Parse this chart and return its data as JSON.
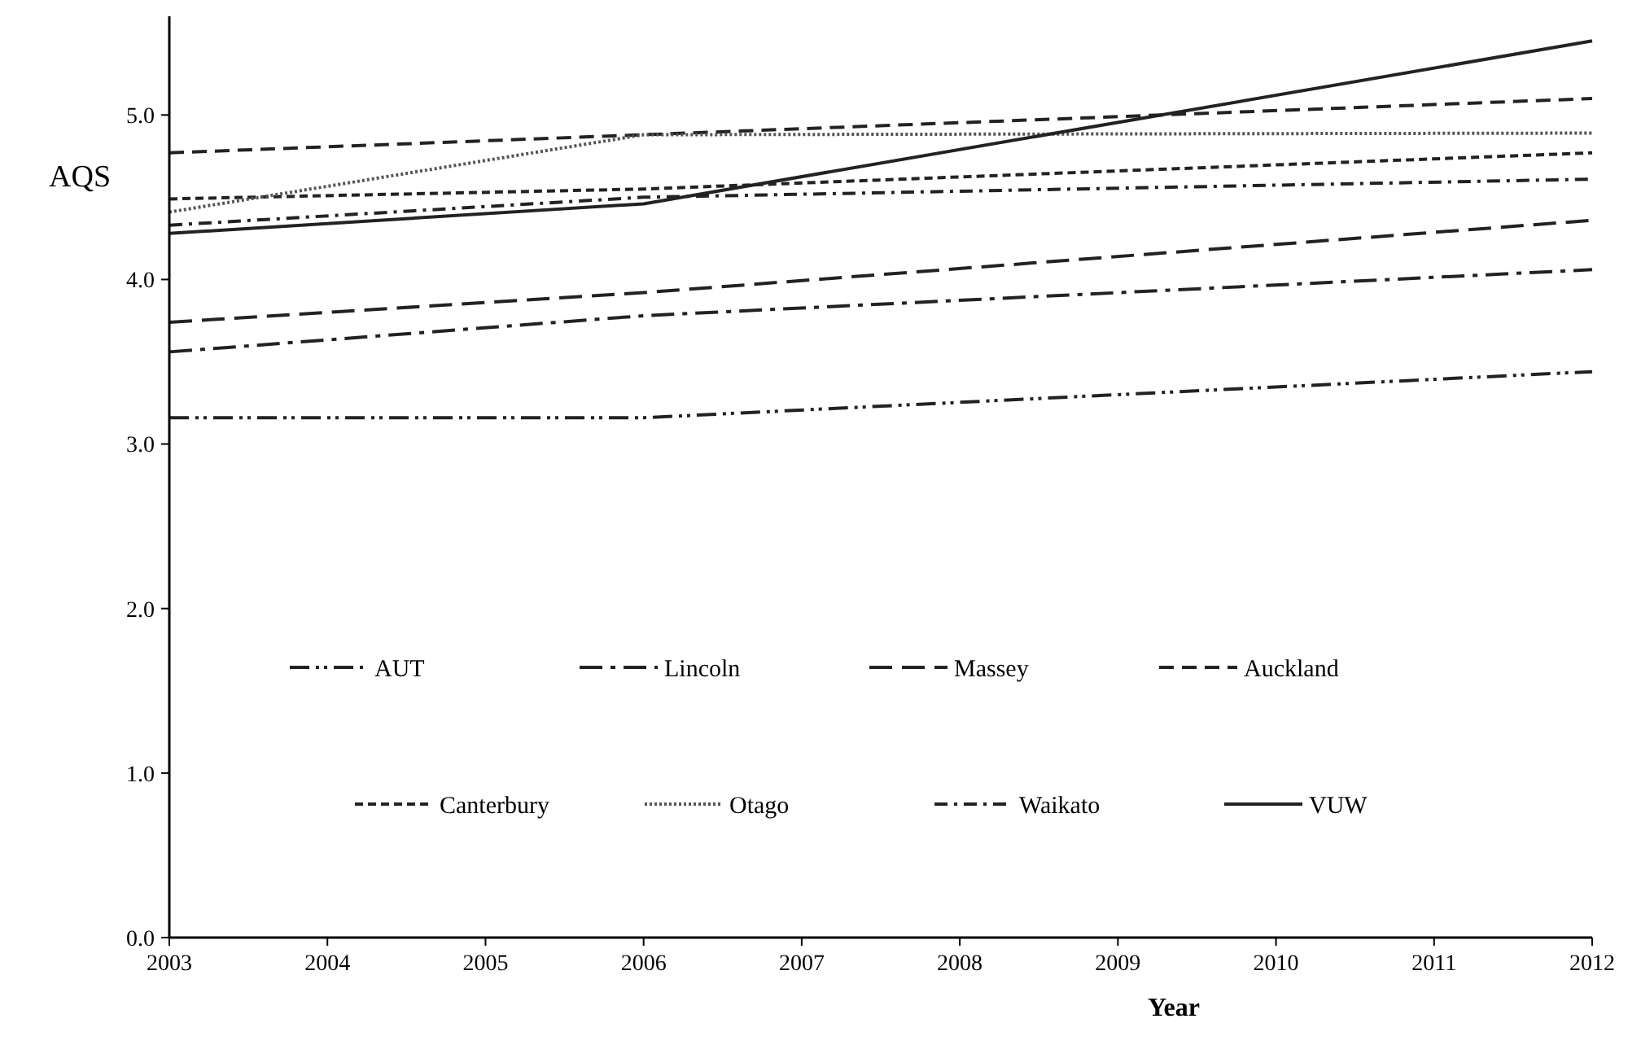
{
  "chart_data": {
    "type": "line",
    "xlabel": "Year",
    "ylabel": "AQS",
    "x": [
      2003,
      2006,
      2012
    ],
    "series": [
      {
        "name": "AUT",
        "color": "#222222",
        "line_style": "dashdotdot",
        "values": [
          3.16,
          3.16,
          3.44
        ]
      },
      {
        "name": "Lincoln",
        "color": "#222222",
        "line_style": "longdashdot",
        "values": [
          3.56,
          3.78,
          4.06
        ]
      },
      {
        "name": "Massey",
        "color": "#222222",
        "line_style": "longdash",
        "values": [
          3.74,
          3.92,
          4.36
        ]
      },
      {
        "name": "Auckland",
        "color": "#222222",
        "line_style": "dashed",
        "values": [
          4.77,
          4.88,
          5.1
        ]
      },
      {
        "name": "Canterbury",
        "color": "#222222",
        "line_style": "shortdash",
        "values": [
          4.49,
          4.55,
          4.77
        ]
      },
      {
        "name": "Otago",
        "color": "#555555",
        "line_style": "dotted",
        "values": [
          4.41,
          4.88,
          4.89
        ]
      },
      {
        "name": "Waikato",
        "color": "#222222",
        "line_style": "dashdot",
        "values": [
          4.33,
          4.5,
          4.61
        ]
      },
      {
        "name": "VUW",
        "color": "#222222",
        "line_style": "solid",
        "values": [
          4.28,
          4.46,
          5.45
        ]
      }
    ],
    "xlim": [
      2003,
      2012
    ],
    "xticks": [
      2003,
      2004,
      2005,
      2006,
      2007,
      2008,
      2009,
      2010,
      2011,
      2012
    ],
    "ylim": [
      0,
      5.6
    ],
    "yticks": [
      {
        "value": 0,
        "label": "0.0"
      },
      {
        "value": 1,
        "label": "1.0"
      },
      {
        "value": 2,
        "label": "2.0"
      },
      {
        "value": 3,
        "label": "3.0"
      },
      {
        "value": 4,
        "label": "4.0"
      },
      {
        "value": 5,
        "label": "5.0"
      }
    ],
    "legend": "bottom",
    "marker": "none",
    "grid": false
  }
}
